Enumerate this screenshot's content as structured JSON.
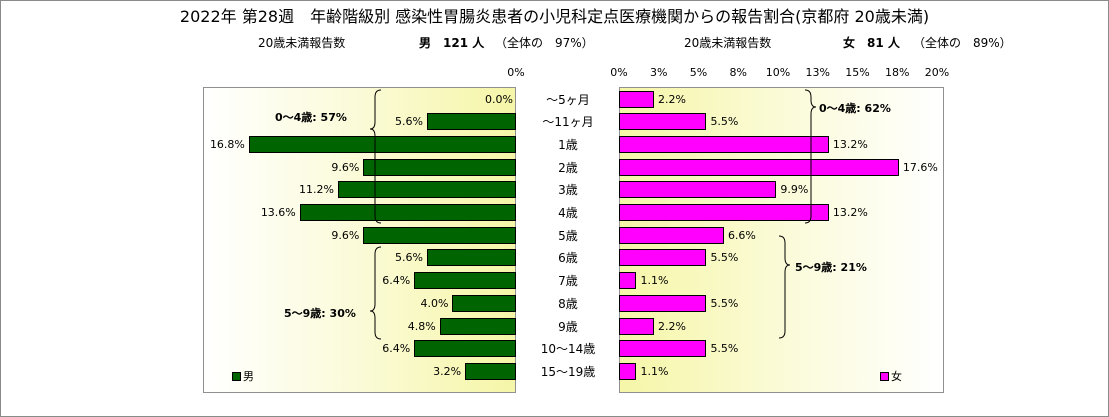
{
  "title": "2022年 第28週　年齢階級別 感染性胃腸炎患者の小児科定点医療機関からの報告割合(京都府 20歳未満)",
  "male_stats": {
    "label": "20歳未満報告数",
    "count_text": "男　121 人",
    "share_text": "（全体の　97%）"
  },
  "female_stats": {
    "label": "20歳未満報告数",
    "count_text": "女　81 人",
    "share_text": "（全体の　89%）"
  },
  "left_axis_tick": "0%",
  "right_axis_ticks": [
    "0%",
    "3%",
    "5%",
    "8%",
    "10%",
    "13%",
    "15%",
    "18%",
    "20%"
  ],
  "chart_data": {
    "type": "bar",
    "orientation": "horizontal-butterfly",
    "categories": [
      "～5ヶ月",
      "～11ヶ月",
      "1歳",
      "2歳",
      "3歳",
      "4歳",
      "5歳",
      "6歳",
      "7歳",
      "8歳",
      "9歳",
      "10～14歳",
      "15～19歳"
    ],
    "series": [
      {
        "name": "男",
        "color": "#006400",
        "values": [
          0.0,
          5.6,
          16.8,
          9.6,
          11.2,
          13.6,
          9.6,
          5.6,
          6.4,
          4.0,
          4.8,
          6.4,
          3.2
        ],
        "labels": [
          "0.0%",
          "5.6%",
          "16.8%",
          "9.6%",
          "11.2%",
          "13.6%",
          "9.6%",
          "5.6%",
          "6.4%",
          "4.0%",
          "4.8%",
          "6.4%",
          "3.2%"
        ]
      },
      {
        "name": "女",
        "color": "#ff00ff",
        "values": [
          2.2,
          5.5,
          13.2,
          17.6,
          9.9,
          13.2,
          6.6,
          5.5,
          1.1,
          5.5,
          2.2,
          5.5,
          1.1
        ],
        "labels": [
          "2.2%",
          "5.5%",
          "13.2%",
          "17.6%",
          "9.9%",
          "13.2%",
          "6.6%",
          "5.5%",
          "1.1%",
          "5.5%",
          "2.2%",
          "5.5%",
          "1.1%"
        ]
      }
    ],
    "xlim_percent": [
      0,
      20
    ],
    "annotations": {
      "male_0_4": "0～4歳: 57%",
      "male_5_9": "5～9歳: 30%",
      "female_0_4": "0～4歳: 62%",
      "female_5_9": "5～9歳: 21%"
    },
    "legend": {
      "male": "男",
      "female": "女",
      "placement": "bottom-corners"
    },
    "grid": false
  }
}
